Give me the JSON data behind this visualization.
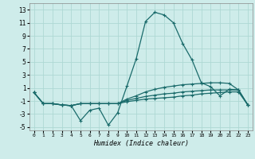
{
  "xlabel": "Humidex (Indice chaleur)",
  "background_color": "#ceecea",
  "grid_color": "#aed8d4",
  "line_color": "#1a6b6b",
  "xlim": [
    -0.5,
    23.5
  ],
  "ylim": [
    -5.5,
    14.0
  ],
  "xticks": [
    0,
    1,
    2,
    3,
    4,
    5,
    6,
    7,
    8,
    9,
    10,
    11,
    12,
    13,
    14,
    15,
    16,
    17,
    18,
    19,
    20,
    21,
    22,
    23
  ],
  "yticks": [
    -5,
    -3,
    -1,
    1,
    3,
    5,
    7,
    9,
    11,
    13
  ],
  "line1_y": [
    0.3,
    -1.4,
    -1.4,
    -1.6,
    -1.7,
    -4.0,
    -2.4,
    -2.1,
    -4.7,
    -2.8,
    1.3,
    5.5,
    11.2,
    12.6,
    12.2,
    11.0,
    7.8,
    5.3,
    1.8,
    1.2,
    -0.2,
    0.8,
    0.7,
    -1.6
  ],
  "line2_y": [
    0.3,
    -1.4,
    -1.4,
    -1.6,
    -1.7,
    -1.4,
    -1.4,
    -1.4,
    -1.4,
    -1.4,
    -0.7,
    -0.2,
    0.4,
    0.8,
    1.1,
    1.3,
    1.5,
    1.6,
    1.7,
    1.8,
    1.8,
    1.7,
    0.7,
    -1.6
  ],
  "line3_y": [
    0.3,
    -1.4,
    -1.4,
    -1.6,
    -1.7,
    -1.4,
    -1.4,
    -1.4,
    -1.4,
    -1.4,
    -0.9,
    -0.6,
    -0.3,
    -0.1,
    0.1,
    0.2,
    0.4,
    0.5,
    0.6,
    0.7,
    0.7,
    0.7,
    0.7,
    -1.6
  ],
  "line4_y": [
    0.3,
    -1.4,
    -1.4,
    -1.6,
    -1.7,
    -1.4,
    -1.4,
    -1.4,
    -1.4,
    -1.4,
    -1.1,
    -0.9,
    -0.7,
    -0.6,
    -0.5,
    -0.4,
    -0.2,
    -0.1,
    0.1,
    0.2,
    0.3,
    0.4,
    0.4,
    -1.6
  ]
}
